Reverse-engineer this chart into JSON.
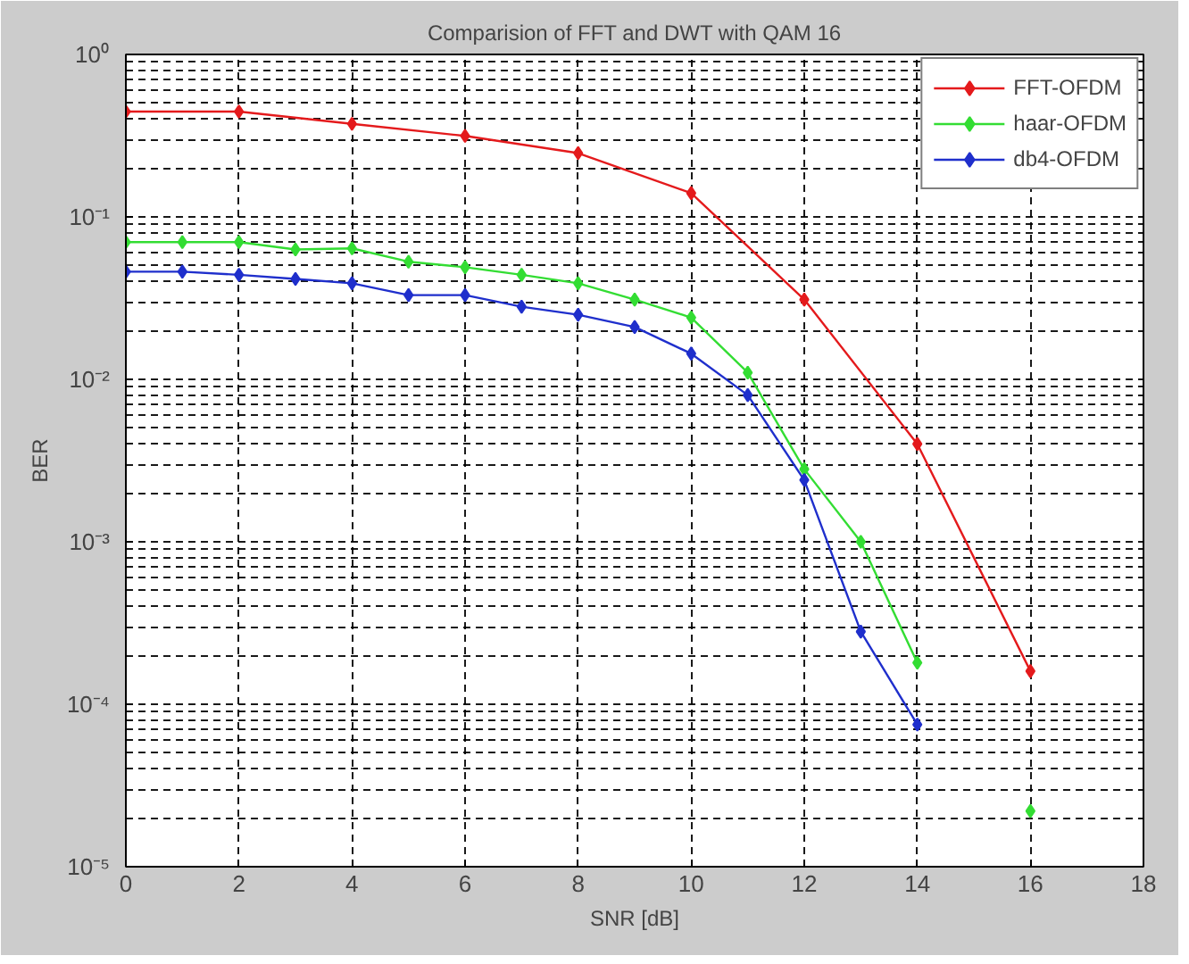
{
  "chart_data": {
    "type": "line",
    "title": "Comparision of FFT and DWT with QAM 16",
    "xlabel": "SNR [dB]",
    "ylabel": "BER",
    "log": "y",
    "grid": true,
    "legend": "top right",
    "marker": "diamond",
    "line_style": "solid",
    "xlim": [
      0,
      18
    ],
    "xticks": [
      0,
      2,
      4,
      6,
      8,
      10,
      12,
      14,
      16,
      18
    ],
    "ylim": [
      1e-05,
      1
    ],
    "yticks": [
      {
        "value": 1e-05,
        "label": "10⁻⁵"
      },
      {
        "value": 0.0001,
        "label": "10⁻⁴"
      },
      {
        "value": 0.001,
        "label": "10⁻³"
      },
      {
        "value": 0.01,
        "label": "10⁻²"
      },
      {
        "value": 0.1,
        "label": "10⁻¹"
      },
      {
        "value": 1,
        "label": "10⁰"
      }
    ],
    "series": [
      {
        "name": "FFT-OFDM",
        "color": "#e41a1c",
        "x": [
          0,
          2,
          4,
          6,
          8,
          10,
          12,
          14,
          16
        ],
        "values": [
          0.445,
          0.445,
          0.374,
          0.315,
          0.247,
          0.14,
          0.031,
          0.004,
          0.00016
        ]
      },
      {
        "name": "haar-OFDM",
        "color": "#33dd33",
        "x": [
          0,
          1,
          2,
          3,
          4,
          5,
          6,
          7,
          8,
          9,
          10,
          11,
          12,
          13,
          14,
          15,
          16
        ],
        "values": [
          0.07,
          0.07,
          0.07,
          0.063,
          0.064,
          0.053,
          0.049,
          0.044,
          0.039,
          0.031,
          0.024,
          0.011,
          0.0028,
          0.001,
          0.00018,
          null,
          2.2e-05
        ]
      },
      {
        "name": "db4-OFDM",
        "color": "#1f2fcc",
        "x": [
          0,
          1,
          2,
          3,
          4,
          5,
          6,
          7,
          8,
          9,
          10,
          11,
          12,
          13,
          14
        ],
        "values": [
          0.046,
          0.046,
          0.044,
          0.0415,
          0.039,
          0.033,
          0.033,
          0.028,
          0.025,
          0.021,
          0.0144,
          0.008,
          0.0024,
          0.00028,
          7.5e-05
        ]
      }
    ]
  }
}
